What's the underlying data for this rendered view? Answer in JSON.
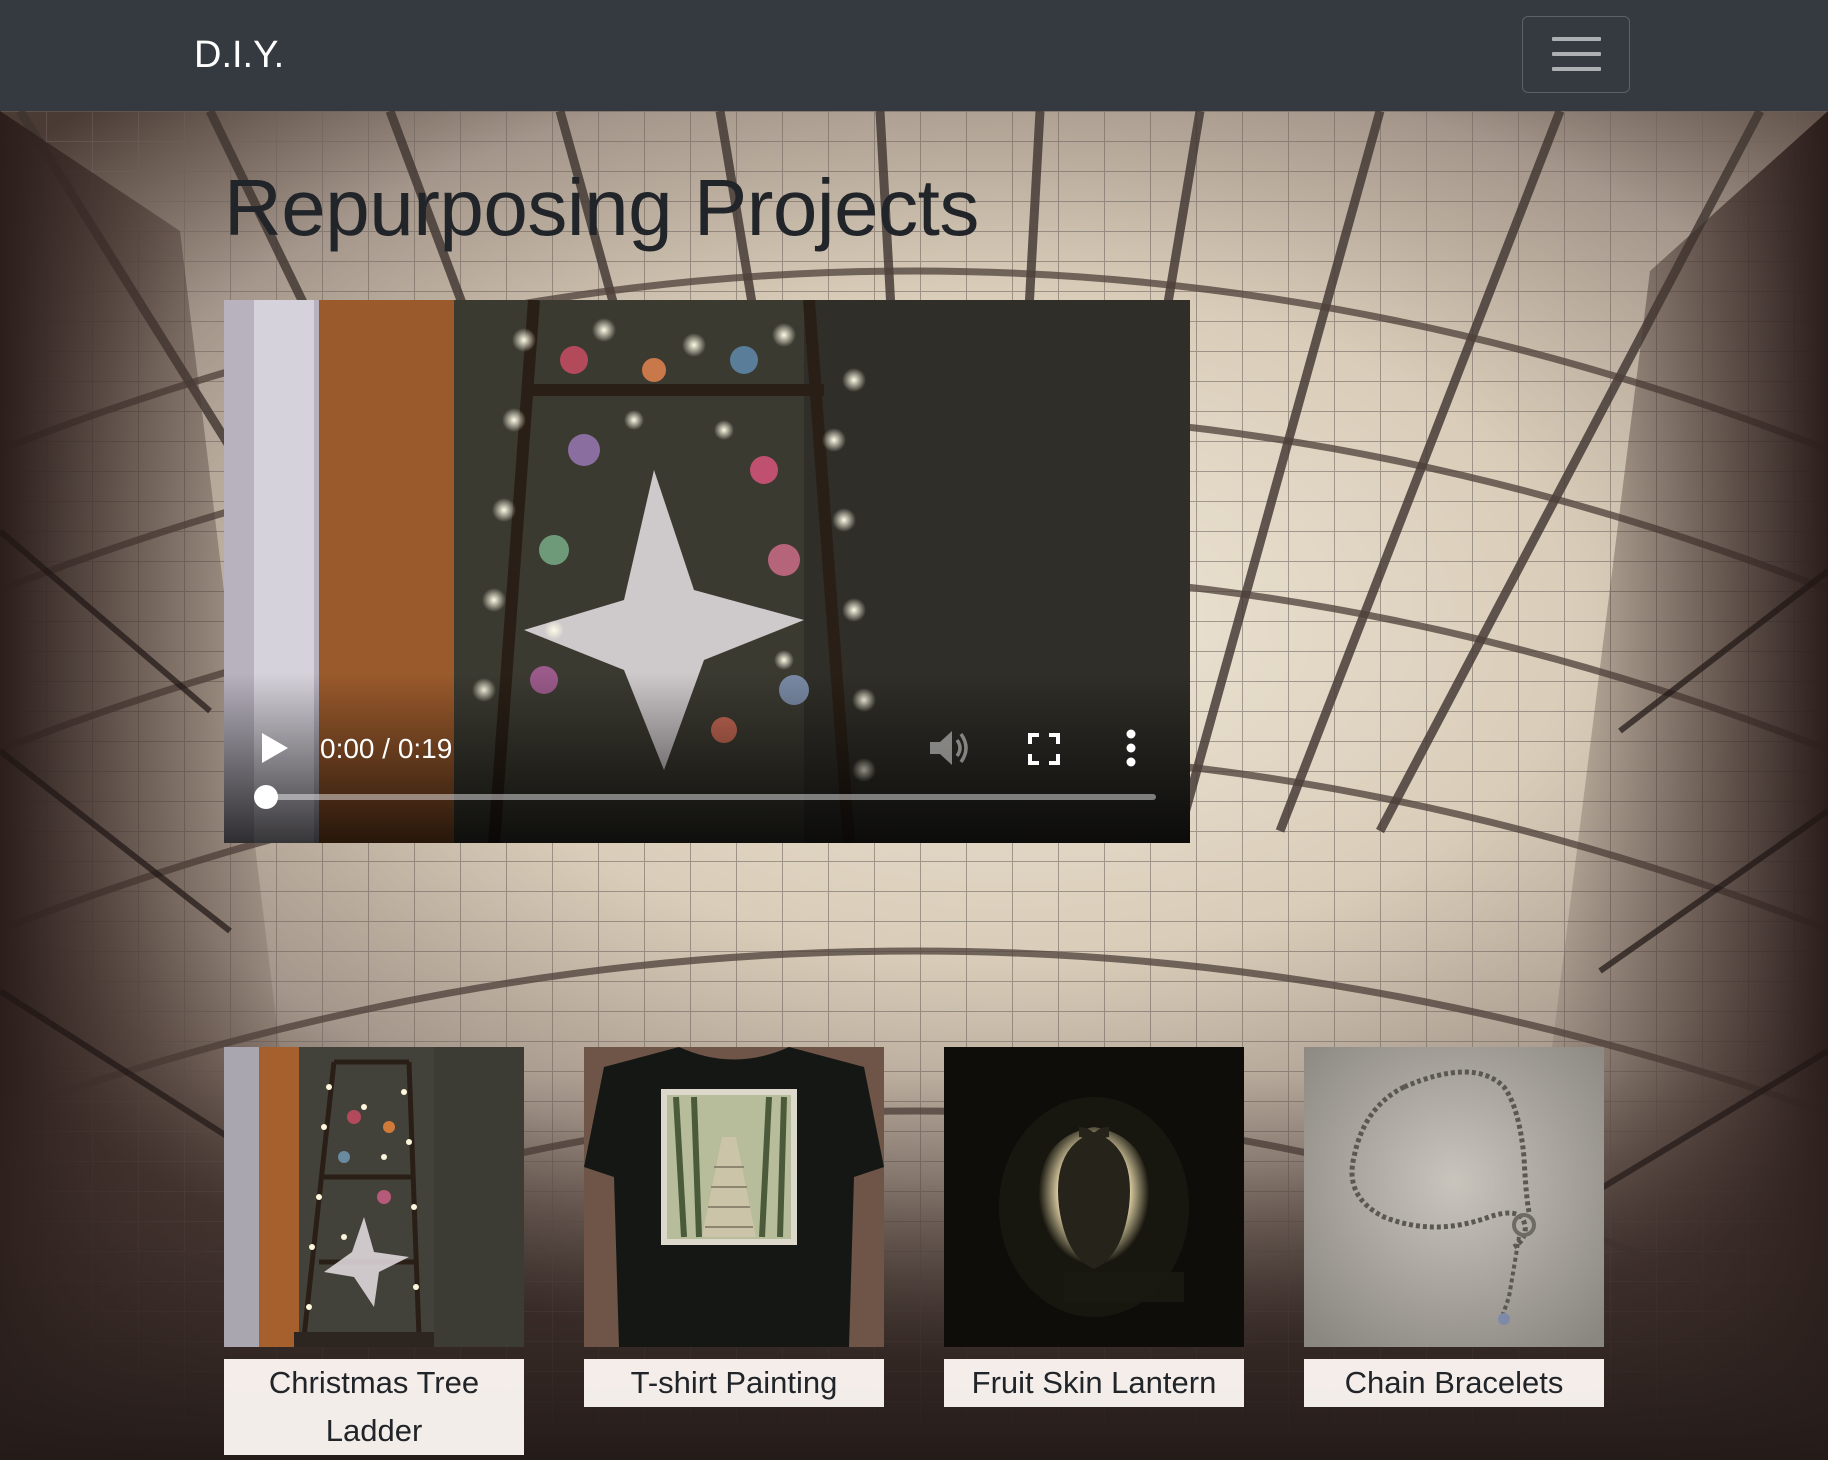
{
  "navbar": {
    "brand": "D.I.Y.",
    "toggle_icon": "hamburger-menu-icon",
    "background": "#343a40"
  },
  "page": {
    "title": "Repurposing Projects",
    "background_image": "glass-roof-arcade-photo"
  },
  "video": {
    "time_display": "0:00 / 0:19",
    "progress_fraction": 0,
    "controls": [
      "play-icon",
      "volume-icon",
      "fullscreen-icon",
      "more-options-icon"
    ]
  },
  "projects": [
    {
      "label": "Christmas Tree Ladder",
      "image": "christmas-tree-ladder-photo"
    },
    {
      "label": "T-shirt Painting",
      "image": "tshirt-painting-photo"
    },
    {
      "label": "Fruit Skin Lantern",
      "image": "fruit-skin-lantern-photo"
    },
    {
      "label": "Chain Bracelets",
      "image": "chain-bracelet-photo"
    }
  ]
}
